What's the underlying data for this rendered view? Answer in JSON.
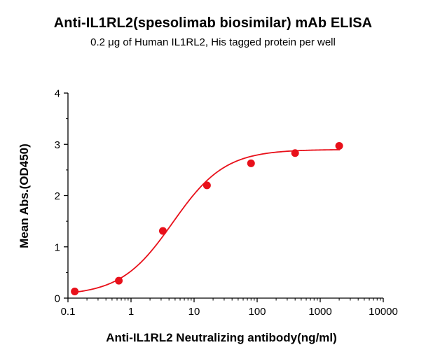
{
  "chart_data": {
    "type": "scatter",
    "title": "Anti-IL1RL2(spesolimab biosimilar) mAb ELISA",
    "subtitle": "0.2 μg of Human IL1RL2, His tagged protein per well",
    "xlabel": "Anti-IL1RL2 Neutralizing antibody(ng/ml)",
    "ylabel": "Mean Abs.(OD450)",
    "x_scale": "log",
    "xlim": [
      0.1,
      10000
    ],
    "ylim": [
      0,
      4
    ],
    "x_ticks": [
      "0.1",
      "1",
      "10",
      "100",
      "1000",
      "10000"
    ],
    "y_ticks": [
      "0",
      "1",
      "2",
      "3",
      "4"
    ],
    "grid": false,
    "legend": "none",
    "marker_color": "#e8101a",
    "curve_color": "#e8101a",
    "series": [
      {
        "x": [
          0.128,
          0.64,
          3.2,
          16,
          80,
          400,
          2000
        ],
        "y": [
          0.13,
          0.34,
          1.31,
          2.2,
          2.63,
          2.83,
          2.97
        ]
      }
    ],
    "fit": {
      "model": "4PL",
      "bottom": 0.05,
      "top": 2.9,
      "ec50": 4.6,
      "hill": 1.05
    }
  }
}
